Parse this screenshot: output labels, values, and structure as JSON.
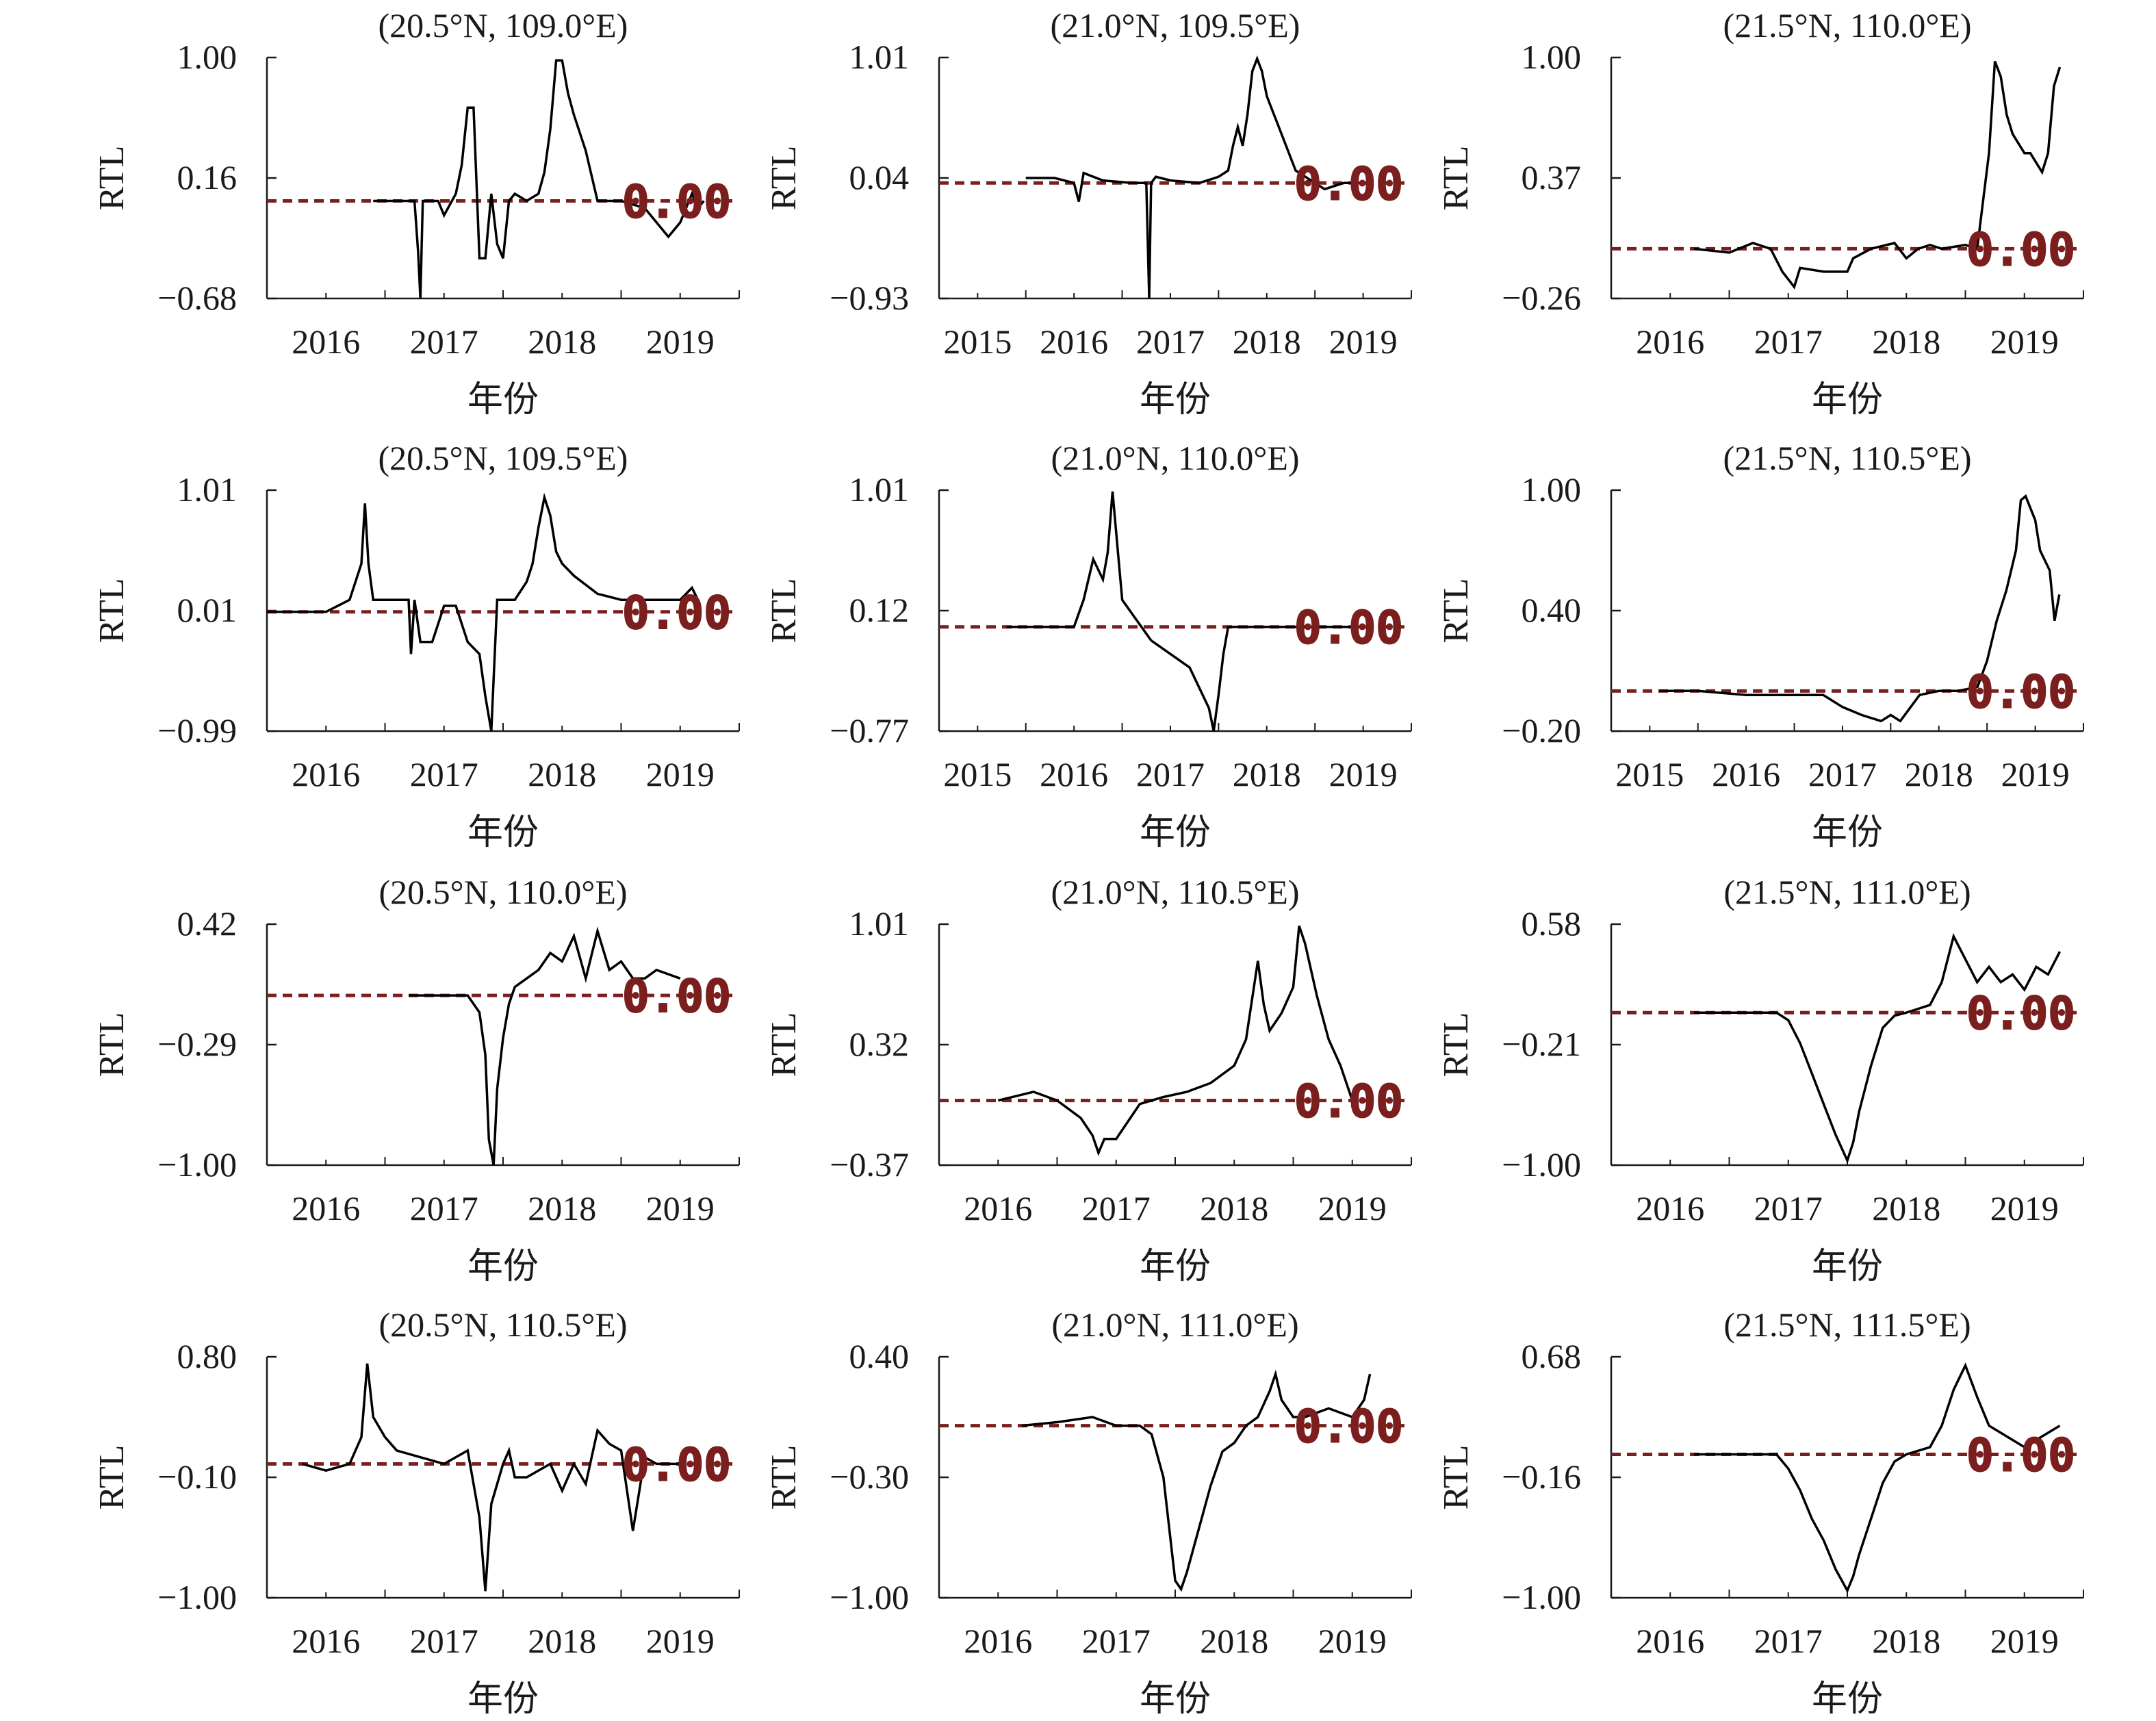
{
  "figure": {
    "ref_line_color": "#7a1e1e",
    "series_color": "#000000",
    "axis_color": "#1a1a1a"
  },
  "chart_data": [
    {
      "type": "line",
      "title": "(20.5°N, 109.0°E)",
      "xlabel": "年份",
      "ylabel": "RTL",
      "xlim": [
        2015.5,
        2019.5
      ],
      "ylim": [
        -0.68,
        1.0
      ],
      "xticks": [
        2016,
        2017,
        2018,
        2019
      ],
      "yticks": [
        "−0.68",
        "0.16",
        "1.00"
      ],
      "ref_value": 0.0,
      "ref_label": "0.00",
      "series": [
        {
          "x": [
            2016.4,
            2016.6,
            2016.75,
            2016.78,
            2016.8,
            2016.82,
            2016.95,
            2017.0,
            2017.1,
            2017.15,
            2017.2,
            2017.25,
            2017.3,
            2017.35,
            2017.4,
            2017.45,
            2017.5,
            2017.55,
            2017.6,
            2017.7,
            2017.8,
            2017.85,
            2017.9,
            2017.95,
            2018.0,
            2018.05,
            2018.1,
            2018.2,
            2018.3,
            2018.5,
            2018.7,
            2018.9,
            2019.0,
            2019.05,
            2019.1,
            2019.15,
            2019.2
          ],
          "y": [
            0.0,
            0.0,
            0.0,
            -0.35,
            -0.68,
            0.0,
            0.0,
            -0.1,
            0.05,
            0.25,
            0.65,
            0.65,
            -0.4,
            -0.4,
            0.05,
            -0.3,
            -0.4,
            0.0,
            0.05,
            0.0,
            0.05,
            0.2,
            0.5,
            0.98,
            0.98,
            0.75,
            0.6,
            0.35,
            0.0,
            0.0,
            -0.05,
            -0.25,
            -0.15,
            -0.05,
            0.05,
            -0.05,
            0.0
          ]
        }
      ]
    },
    {
      "type": "line",
      "title": "(21.0°N, 109.5°E)",
      "xlabel": "年份",
      "ylabel": "RTL",
      "xlim": [
        2014.6,
        2019.5
      ],
      "ylim": [
        -0.93,
        1.01
      ],
      "xticks": [
        2015,
        2016,
        2017,
        2018,
        2019
      ],
      "yticks": [
        "−0.93",
        "0.04",
        "1.01"
      ],
      "ref_value": 0.0,
      "ref_label": "0.00",
      "series": [
        {
          "x": [
            2015.5,
            2015.8,
            2016.0,
            2016.05,
            2016.1,
            2016.3,
            2016.6,
            2016.75,
            2016.78,
            2016.8,
            2016.85,
            2017.0,
            2017.3,
            2017.5,
            2017.6,
            2017.65,
            2017.7,
            2017.75,
            2017.8,
            2017.85,
            2017.9,
            2017.95,
            2018.0,
            2018.05,
            2018.1,
            2018.3,
            2018.5,
            2018.6,
            2018.8,
            2019.0
          ],
          "y": [
            0.04,
            0.04,
            0.0,
            -0.15,
            0.08,
            0.02,
            0.0,
            0.0,
            -0.93,
            0.0,
            0.05,
            0.02,
            0.0,
            0.05,
            0.1,
            0.3,
            0.45,
            0.3,
            0.55,
            0.9,
            1.0,
            0.9,
            0.7,
            0.6,
            0.5,
            0.1,
            0.0,
            -0.05,
            0.0,
            0.0
          ]
        }
      ]
    },
    {
      "type": "line",
      "title": "(21.5°N, 110.0°E)",
      "xlabel": "年份",
      "ylabel": "RTL",
      "xlim": [
        2015.5,
        2019.5
      ],
      "ylim": [
        -0.26,
        1.0
      ],
      "xticks": [
        2016,
        2017,
        2018,
        2019
      ],
      "yticks": [
        "−0.26",
        "0.37",
        "1.00"
      ],
      "ref_value": 0.0,
      "ref_label": "0.00",
      "series": [
        {
          "x": [
            2016.2,
            2016.5,
            2016.7,
            2016.85,
            2016.95,
            2017.05,
            2017.1,
            2017.3,
            2017.5,
            2017.55,
            2017.7,
            2017.9,
            2018.0,
            2018.1,
            2018.2,
            2018.3,
            2018.5,
            2018.6,
            2018.7,
            2018.75,
            2018.8,
            2018.85,
            2018.9,
            2019.0,
            2019.05,
            2019.15,
            2019.2,
            2019.25,
            2019.3
          ],
          "y": [
            0.0,
            -0.02,
            0.03,
            0.0,
            -0.12,
            -0.2,
            -0.1,
            -0.12,
            -0.12,
            -0.05,
            0.0,
            0.03,
            -0.05,
            0.0,
            0.02,
            0.0,
            0.02,
            0.0,
            0.5,
            0.98,
            0.9,
            0.7,
            0.6,
            0.5,
            0.5,
            0.4,
            0.5,
            0.85,
            0.95
          ]
        }
      ]
    },
    {
      "type": "line",
      "title": "(20.5°N, 109.5°E)",
      "xlabel": "年份",
      "ylabel": "RTL",
      "xlim": [
        2015.5,
        2019.5
      ],
      "ylim": [
        -0.99,
        1.01
      ],
      "xticks": [
        2016,
        2017,
        2018,
        2019
      ],
      "yticks": [
        "−0.99",
        "0.01",
        "1.01"
      ],
      "ref_value": 0.0,
      "ref_label": "0.00",
      "series": [
        {
          "x": [
            2015.5,
            2015.8,
            2016.0,
            2016.2,
            2016.3,
            2016.33,
            2016.36,
            2016.4,
            2016.5,
            2016.7,
            2016.72,
            2016.75,
            2016.8,
            2016.9,
            2017.0,
            2017.1,
            2017.2,
            2017.3,
            2017.35,
            2017.4,
            2017.45,
            2017.5,
            2017.6,
            2017.7,
            2017.75,
            2017.8,
            2017.85,
            2017.9,
            2017.95,
            2018.0,
            2018.1,
            2018.3,
            2018.5,
            2019.0,
            2019.1,
            2019.15
          ],
          "y": [
            0.0,
            0.0,
            0.0,
            0.1,
            0.4,
            0.9,
            0.4,
            0.1,
            0.1,
            0.1,
            -0.35,
            0.1,
            -0.25,
            -0.25,
            0.05,
            0.05,
            -0.25,
            -0.35,
            -0.7,
            -0.99,
            0.1,
            0.1,
            0.1,
            0.25,
            0.4,
            0.7,
            0.95,
            0.8,
            0.5,
            0.4,
            0.3,
            0.15,
            0.1,
            0.1,
            0.2,
            0.1
          ]
        }
      ]
    },
    {
      "type": "line",
      "title": "(21.0°N, 110.0°E)",
      "xlabel": "年份",
      "ylabel": "RTL",
      "xlim": [
        2014.6,
        2019.5
      ],
      "ylim": [
        -0.77,
        1.01
      ],
      "xticks": [
        2015,
        2016,
        2017,
        2018,
        2019
      ],
      "yticks": [
        "−0.77",
        "0.12",
        "1.01"
      ],
      "ref_value": 0.0,
      "ref_label": "0.00",
      "series": [
        {
          "x": [
            2015.3,
            2015.6,
            2016.0,
            2016.1,
            2016.2,
            2016.3,
            2016.35,
            2016.4,
            2016.45,
            2016.5,
            2016.6,
            2016.8,
            2017.0,
            2017.2,
            2017.3,
            2017.4,
            2017.45,
            2017.5,
            2017.55,
            2017.6,
            2017.8,
            2018.0,
            2018.5,
            2019.0
          ],
          "y": [
            0.0,
            0.0,
            0.0,
            0.2,
            0.5,
            0.35,
            0.55,
            1.0,
            0.6,
            0.2,
            0.1,
            -0.1,
            -0.2,
            -0.3,
            -0.45,
            -0.6,
            -0.77,
            -0.5,
            -0.2,
            0.0,
            0.0,
            0.0,
            0.0,
            0.0
          ]
        }
      ]
    },
    {
      "type": "line",
      "title": "(21.5°N, 110.5°E)",
      "xlabel": "年份",
      "ylabel": "RTL",
      "xlim": [
        2014.6,
        2019.5
      ],
      "ylim": [
        -0.2,
        1.0
      ],
      "xticks": [
        2015,
        2016,
        2017,
        2018,
        2019
      ],
      "yticks": [
        "−0.20",
        "0.40",
        "1.00"
      ],
      "ref_value": 0.0,
      "ref_label": "0.00",
      "series": [
        {
          "x": [
            2015.1,
            2015.5,
            2016.0,
            2016.5,
            2016.8,
            2017.0,
            2017.2,
            2017.4,
            2017.5,
            2017.6,
            2017.8,
            2018.0,
            2018.2,
            2018.4,
            2018.5,
            2018.6,
            2018.7,
            2018.8,
            2018.85,
            2018.9,
            2019.0,
            2019.05,
            2019.1,
            2019.15,
            2019.2,
            2019.25
          ],
          "y": [
            0.0,
            0.0,
            -0.02,
            -0.02,
            -0.02,
            -0.08,
            -0.12,
            -0.15,
            -0.12,
            -0.15,
            -0.02,
            0.0,
            0.0,
            0.02,
            0.15,
            0.35,
            0.5,
            0.7,
            0.95,
            0.97,
            0.85,
            0.7,
            0.65,
            0.6,
            0.35,
            0.48
          ]
        }
      ]
    },
    {
      "type": "line",
      "title": "(20.5°N, 110.0°E)",
      "xlabel": "年份",
      "ylabel": "RTL",
      "xlim": [
        2015.5,
        2019.5
      ],
      "ylim": [
        -1.0,
        0.42
      ],
      "xticks": [
        2016,
        2017,
        2018,
        2019
      ],
      "yticks": [
        "−1.00",
        "−0.29",
        "0.42"
      ],
      "ref_value": 0.0,
      "ref_label": "0.00",
      "series": [
        {
          "x": [
            2016.7,
            2017.0,
            2017.2,
            2017.3,
            2017.35,
            2017.38,
            2017.42,
            2017.45,
            2017.5,
            2017.55,
            2017.6,
            2017.7,
            2017.8,
            2017.9,
            2018.0,
            2018.1,
            2018.2,
            2018.3,
            2018.4,
            2018.5,
            2018.6,
            2018.7,
            2018.8,
            2019.0
          ],
          "y": [
            0.0,
            0.0,
            0.0,
            -0.1,
            -0.35,
            -0.85,
            -1.0,
            -0.55,
            -0.25,
            -0.05,
            0.05,
            0.1,
            0.15,
            0.25,
            0.2,
            0.35,
            0.1,
            0.38,
            0.15,
            0.2,
            0.1,
            0.1,
            0.15,
            0.1
          ]
        }
      ]
    },
    {
      "type": "line",
      "title": "(21.0°N, 110.5°E)",
      "xlabel": "年份",
      "ylabel": "RTL",
      "xlim": [
        2015.5,
        2019.5
      ],
      "ylim": [
        -0.37,
        1.01
      ],
      "xticks": [
        2016,
        2017,
        2018,
        2019
      ],
      "yticks": [
        "−0.37",
        "0.32",
        "1.01"
      ],
      "ref_value": 0.0,
      "ref_label": "0.00",
      "series": [
        {
          "x": [
            2016.0,
            2016.3,
            2016.5,
            2016.7,
            2016.8,
            2016.85,
            2016.9,
            2017.0,
            2017.2,
            2017.3,
            2017.4,
            2017.6,
            2017.8,
            2018.0,
            2018.1,
            2018.2,
            2018.25,
            2018.3,
            2018.4,
            2018.5,
            2018.55,
            2018.6,
            2018.7,
            2018.8,
            2018.9,
            2019.0
          ],
          "y": [
            0.0,
            0.05,
            0.0,
            -0.1,
            -0.2,
            -0.3,
            -0.22,
            -0.22,
            -0.02,
            0.0,
            0.02,
            0.05,
            0.1,
            0.2,
            0.35,
            0.8,
            0.55,
            0.4,
            0.5,
            0.65,
            1.0,
            0.9,
            0.6,
            0.35,
            0.2,
            0.0
          ]
        }
      ]
    },
    {
      "type": "line",
      "title": "(21.5°N, 111.0°E)",
      "xlabel": "年份",
      "ylabel": "RTL",
      "xlim": [
        2015.5,
        2019.5
      ],
      "ylim": [
        -1.0,
        0.58
      ],
      "xticks": [
        2016,
        2017,
        2018,
        2019
      ],
      "yticks": [
        "−1.00",
        "−0.21",
        "0.58"
      ],
      "ref_value": 0.0,
      "ref_label": "0.00",
      "series": [
        {
          "x": [
            2016.2,
            2016.5,
            2016.9,
            2017.0,
            2017.1,
            2017.2,
            2017.3,
            2017.4,
            2017.5,
            2017.55,
            2017.6,
            2017.7,
            2017.8,
            2017.9,
            2018.0,
            2018.2,
            2018.3,
            2018.4,
            2018.5,
            2018.6,
            2018.7,
            2018.8,
            2018.9,
            2019.0,
            2019.1,
            2019.2,
            2019.3
          ],
          "y": [
            0.0,
            0.0,
            0.0,
            -0.05,
            -0.2,
            -0.4,
            -0.6,
            -0.8,
            -0.97,
            -0.85,
            -0.65,
            -0.35,
            -0.1,
            -0.02,
            0.0,
            0.05,
            0.2,
            0.5,
            0.35,
            0.2,
            0.3,
            0.2,
            0.25,
            0.15,
            0.3,
            0.25,
            0.4
          ]
        }
      ]
    },
    {
      "type": "line",
      "title": "(20.5°N, 110.5°E)",
      "xlabel": "年份",
      "ylabel": "RTL",
      "xlim": [
        2015.5,
        2019.5
      ],
      "ylim": [
        -1.0,
        0.8
      ],
      "xticks": [
        2016,
        2017,
        2018,
        2019
      ],
      "yticks": [
        "−1.00",
        "−0.10",
        "0.80"
      ],
      "ref_value": 0.0,
      "ref_label": "0.00",
      "series": [
        {
          "x": [
            2015.8,
            2016.0,
            2016.2,
            2016.3,
            2016.35,
            2016.4,
            2016.5,
            2016.6,
            2016.8,
            2017.0,
            2017.2,
            2017.3,
            2017.35,
            2017.4,
            2017.5,
            2017.55,
            2017.6,
            2017.7,
            2017.9,
            2018.0,
            2018.1,
            2018.2,
            2018.3,
            2018.4,
            2018.5,
            2018.6,
            2018.7,
            2018.8,
            2018.9,
            2019.0
          ],
          "y": [
            0.0,
            -0.05,
            0.0,
            0.2,
            0.75,
            0.35,
            0.2,
            0.1,
            0.05,
            0.0,
            0.1,
            -0.4,
            -0.95,
            -0.3,
            0.0,
            0.1,
            -0.1,
            -0.1,
            0.0,
            -0.2,
            0.0,
            -0.15,
            0.25,
            0.15,
            0.1,
            -0.5,
            0.05,
            0.0,
            0.0,
            0.0
          ]
        }
      ]
    },
    {
      "type": "line",
      "title": "(21.0°N, 111.0°E)",
      "xlabel": "年份",
      "ylabel": "RTL",
      "xlim": [
        2015.5,
        2019.5
      ],
      "ylim": [
        -1.0,
        0.4
      ],
      "xticks": [
        2016,
        2017,
        2018,
        2019
      ],
      "yticks": [
        "−1.00",
        "−0.30",
        "0.40"
      ],
      "ref_value": 0.0,
      "ref_label": "0.00",
      "series": [
        {
          "x": [
            2016.2,
            2016.5,
            2016.8,
            2017.0,
            2017.2,
            2017.3,
            2017.4,
            2017.45,
            2017.5,
            2017.55,
            2017.6,
            2017.7,
            2017.8,
            2017.9,
            2018.0,
            2018.1,
            2018.2,
            2018.3,
            2018.35,
            2018.4,
            2018.5,
            2018.6,
            2018.8,
            2019.0,
            2019.1,
            2019.15
          ],
          "y": [
            0.0,
            0.02,
            0.05,
            0.0,
            0.0,
            -0.05,
            -0.3,
            -0.6,
            -0.9,
            -0.95,
            -0.85,
            -0.6,
            -0.35,
            -0.15,
            -0.1,
            0.0,
            0.05,
            0.2,
            0.3,
            0.15,
            0.05,
            0.05,
            0.1,
            0.05,
            0.15,
            0.3
          ]
        }
      ]
    },
    {
      "type": "line",
      "title": "(21.5°N, 111.5°E)",
      "xlabel": "年份",
      "ylabel": "RTL",
      "xlim": [
        2015.5,
        2019.5
      ],
      "ylim": [
        -1.0,
        0.68
      ],
      "xticks": [
        2016,
        2017,
        2018,
        2019
      ],
      "yticks": [
        "−1.00",
        "−0.16",
        "0.68"
      ],
      "ref_value": 0.0,
      "ref_label": "0.00",
      "series": [
        {
          "x": [
            2016.2,
            2016.5,
            2016.9,
            2017.0,
            2017.1,
            2017.2,
            2017.3,
            2017.4,
            2017.5,
            2017.55,
            2017.6,
            2017.7,
            2017.8,
            2017.9,
            2018.0,
            2018.2,
            2018.3,
            2018.4,
            2018.5,
            2018.6,
            2018.7,
            2018.8,
            2018.9,
            2019.0,
            2019.1,
            2019.2,
            2019.3
          ],
          "y": [
            0.0,
            0.0,
            0.0,
            -0.1,
            -0.25,
            -0.45,
            -0.6,
            -0.8,
            -0.95,
            -0.85,
            -0.7,
            -0.45,
            -0.2,
            -0.05,
            0.0,
            0.05,
            0.2,
            0.45,
            0.62,
            0.4,
            0.2,
            0.15,
            0.1,
            0.05,
            0.1,
            0.15,
            0.2
          ]
        }
      ]
    }
  ]
}
